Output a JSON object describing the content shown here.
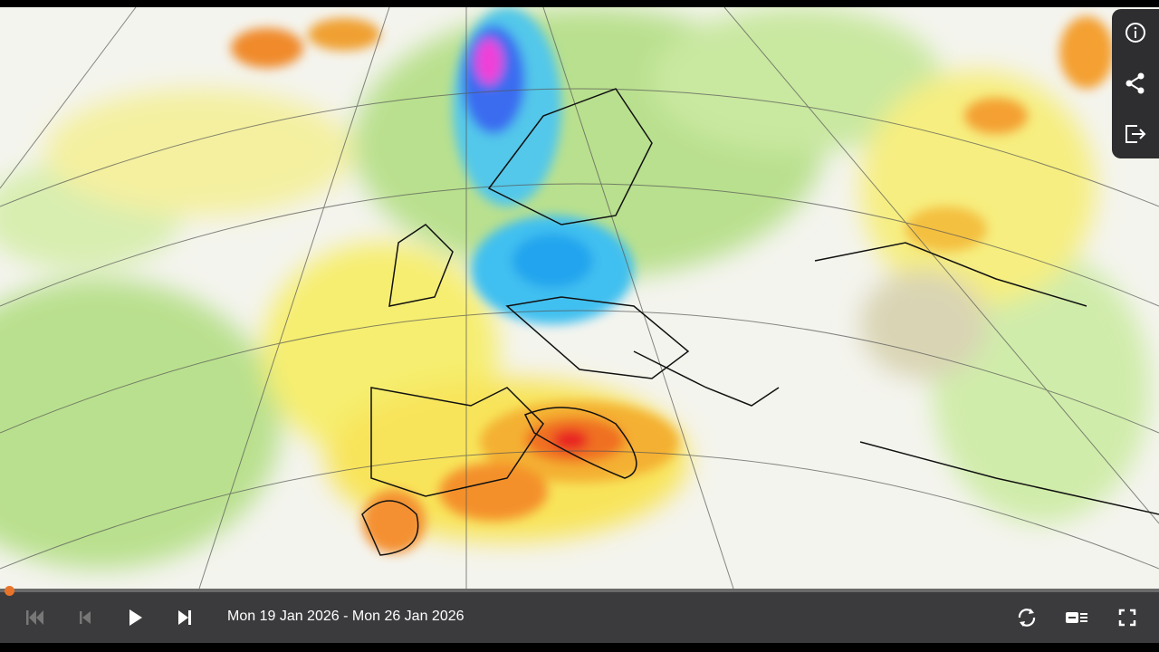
{
  "player": {
    "date_range": "Mon 19 Jan 2026 - Mon 26 Jan 2026"
  }
}
